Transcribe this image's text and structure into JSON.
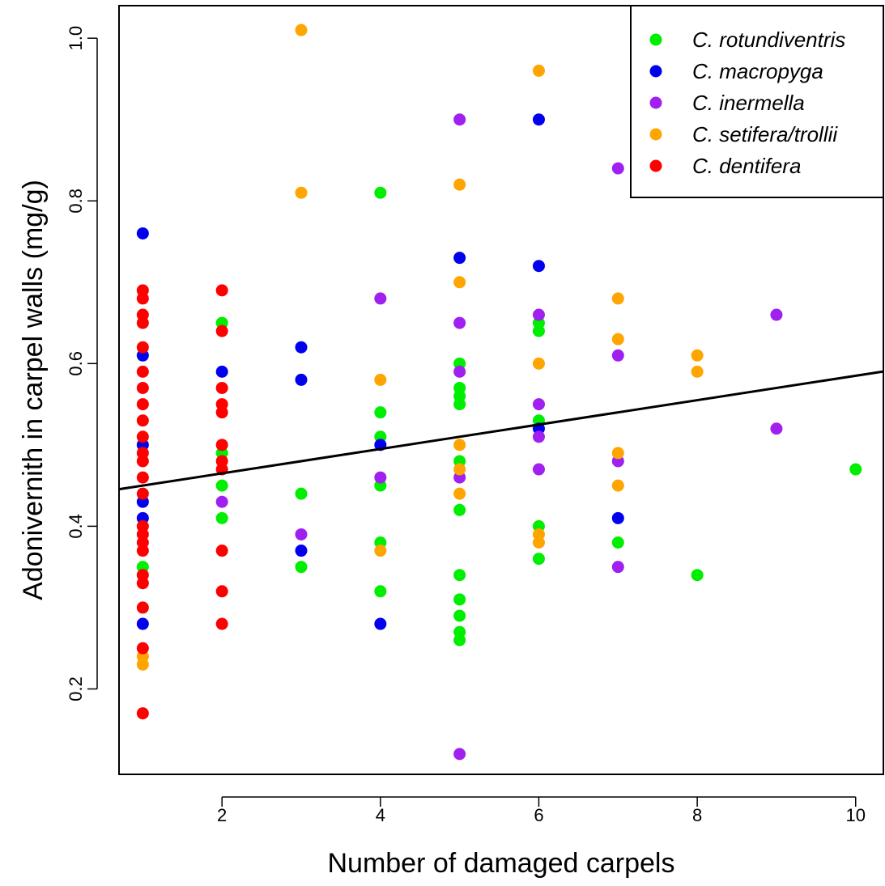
{
  "chart_data": {
    "type": "scatter",
    "xlabel": "Number of damaged carpels",
    "ylabel": "Adonivernith in carpel walls (mg/g)",
    "xlim": [
      0.7,
      10.35
    ],
    "ylim": [
      0.095,
      1.04
    ],
    "x_ticks": [
      2,
      4,
      6,
      8,
      10
    ],
    "y_ticks": [
      0.2,
      0.4,
      0.6,
      0.8,
      1.0
    ],
    "x_tick_labels": [
      "2",
      "4",
      "6",
      "8",
      "10"
    ],
    "y_tick_labels": [
      "0.2",
      "0.4",
      "0.6",
      "0.8",
      "1.0"
    ],
    "grid": false,
    "legend_position": "top-right",
    "trend_line": {
      "intercept": 0.435,
      "slope": 0.015
    },
    "series": [
      {
        "name": "C. rotundiventris",
        "color": "#00ee00",
        "points": [
          [
            1,
            0.35
          ],
          [
            2,
            0.65
          ],
          [
            2,
            0.49
          ],
          [
            2,
            0.45
          ],
          [
            2,
            0.41
          ],
          [
            3,
            0.44
          ],
          [
            3,
            0.35
          ],
          [
            4,
            0.81
          ],
          [
            4,
            0.54
          ],
          [
            4,
            0.51
          ],
          [
            4,
            0.45
          ],
          [
            4,
            0.38
          ],
          [
            4,
            0.32
          ],
          [
            5,
            0.6
          ],
          [
            5,
            0.57
          ],
          [
            5,
            0.56
          ],
          [
            5,
            0.55
          ],
          [
            5,
            0.48
          ],
          [
            5,
            0.42
          ],
          [
            5,
            0.34
          ],
          [
            5,
            0.31
          ],
          [
            5,
            0.29
          ],
          [
            5,
            0.27
          ],
          [
            5,
            0.26
          ],
          [
            6,
            0.65
          ],
          [
            6,
            0.64
          ],
          [
            6,
            0.53
          ],
          [
            6,
            0.4
          ],
          [
            6,
            0.36
          ],
          [
            7,
            0.38
          ],
          [
            8,
            0.34
          ],
          [
            10,
            0.47
          ]
        ]
      },
      {
        "name": "C. macropyga",
        "color": "#0000ee",
        "points": [
          [
            1,
            0.76
          ],
          [
            1,
            0.61
          ],
          [
            1,
            0.5
          ],
          [
            1,
            0.43
          ],
          [
            1,
            0.41
          ],
          [
            1,
            0.28
          ],
          [
            2,
            0.59
          ],
          [
            3,
            0.62
          ],
          [
            3,
            0.58
          ],
          [
            3,
            0.37
          ],
          [
            4,
            0.5
          ],
          [
            4,
            0.28
          ],
          [
            5,
            0.73
          ],
          [
            6,
            0.9
          ],
          [
            6,
            0.72
          ],
          [
            6,
            0.52
          ],
          [
            7,
            0.41
          ]
        ]
      },
      {
        "name": "C. inermella",
        "color": "#a020f0",
        "points": [
          [
            2,
            0.43
          ],
          [
            3,
            0.39
          ],
          [
            4,
            0.68
          ],
          [
            4,
            0.46
          ],
          [
            5,
            0.9
          ],
          [
            5,
            0.65
          ],
          [
            5,
            0.59
          ],
          [
            5,
            0.46
          ],
          [
            5,
            0.12
          ],
          [
            6,
            0.66
          ],
          [
            6,
            0.55
          ],
          [
            6,
            0.51
          ],
          [
            6,
            0.47
          ],
          [
            7,
            0.84
          ],
          [
            7,
            0.61
          ],
          [
            7,
            0.48
          ],
          [
            7,
            0.35
          ],
          [
            9,
            0.66
          ],
          [
            9,
            0.52
          ]
        ]
      },
      {
        "name": "C. setifera/trollii",
        "color": "#ffa500",
        "points": [
          [
            1,
            0.24
          ],
          [
            1,
            0.23
          ],
          [
            3,
            1.01
          ],
          [
            3,
            0.81
          ],
          [
            4,
            0.58
          ],
          [
            4,
            0.37
          ],
          [
            5,
            0.82
          ],
          [
            5,
            0.7
          ],
          [
            5,
            0.5
          ],
          [
            5,
            0.47
          ],
          [
            5,
            0.44
          ],
          [
            6,
            0.96
          ],
          [
            6,
            0.6
          ],
          [
            6,
            0.39
          ],
          [
            6,
            0.38
          ],
          [
            7,
            0.68
          ],
          [
            7,
            0.63
          ],
          [
            7,
            0.49
          ],
          [
            7,
            0.45
          ],
          [
            8,
            0.61
          ],
          [
            8,
            0.59
          ]
        ]
      },
      {
        "name": "C. dentifera",
        "color": "#ff0000",
        "points": [
          [
            1,
            0.69
          ],
          [
            1,
            0.68
          ],
          [
            1,
            0.66
          ],
          [
            1,
            0.65
          ],
          [
            1,
            0.62
          ],
          [
            1,
            0.59
          ],
          [
            1,
            0.57
          ],
          [
            1,
            0.55
          ],
          [
            1,
            0.53
          ],
          [
            1,
            0.51
          ],
          [
            1,
            0.49
          ],
          [
            1,
            0.48
          ],
          [
            1,
            0.46
          ],
          [
            1,
            0.44
          ],
          [
            1,
            0.4
          ],
          [
            1,
            0.39
          ],
          [
            1,
            0.38
          ],
          [
            1,
            0.37
          ],
          [
            1,
            0.34
          ],
          [
            1,
            0.33
          ],
          [
            1,
            0.3
          ],
          [
            1,
            0.25
          ],
          [
            1,
            0.17
          ],
          [
            2,
            0.69
          ],
          [
            2,
            0.64
          ],
          [
            2,
            0.57
          ],
          [
            2,
            0.55
          ],
          [
            2,
            0.54
          ],
          [
            2,
            0.5
          ],
          [
            2,
            0.48
          ],
          [
            2,
            0.47
          ],
          [
            2,
            0.37
          ],
          [
            2,
            0.32
          ],
          [
            2,
            0.28
          ]
        ]
      }
    ]
  }
}
